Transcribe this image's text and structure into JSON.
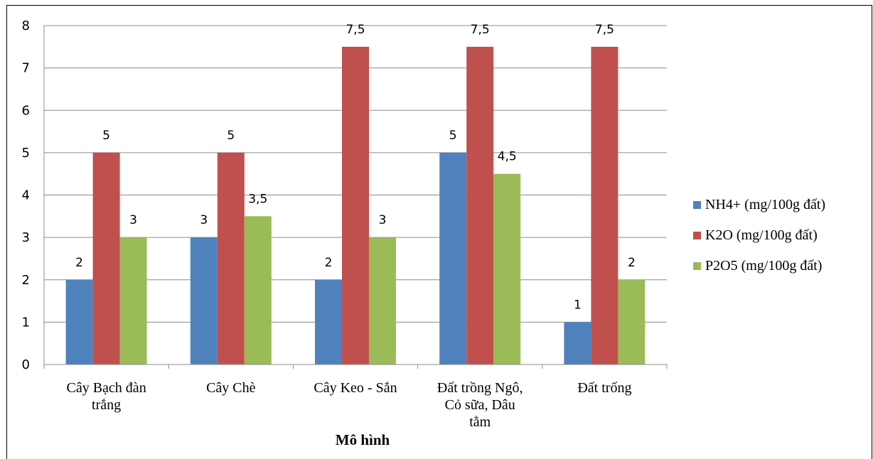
{
  "chart_data": {
    "type": "bar",
    "categories": [
      [
        "Cây Bạch đàn",
        "trắng"
      ],
      [
        "Cây Chè"
      ],
      [
        "Cây Keo - Sắn"
      ],
      [
        "Đất trồng Ngô,",
        "Cỏ sữa, Dâu",
        "tằm"
      ],
      [
        "Đất trống"
      ]
    ],
    "series": [
      {
        "name": "NH4+ (mg/100g đất)",
        "color": "#4f81bd",
        "values": [
          2,
          3,
          2,
          5,
          1
        ],
        "labels": [
          "2",
          "3",
          "2",
          "5",
          "1"
        ]
      },
      {
        "name": "K2O (mg/100g đất)",
        "color": "#c0504d",
        "values": [
          5,
          5,
          7.5,
          7.5,
          7.5
        ],
        "labels": [
          "5",
          "5",
          "7,5",
          "7,5",
          "7,5"
        ]
      },
      {
        "name": "P2O5 (mg/100g đất)",
        "color": "#9bbb59",
        "values": [
          3,
          3.5,
          3,
          4.5,
          2
        ],
        "labels": [
          "3",
          "3,5",
          "3",
          "4,5",
          "2"
        ]
      }
    ],
    "xlabel": "Mô hình",
    "ylabel": "",
    "ylim": [
      0,
      8
    ],
    "yticks": [
      "0",
      "1",
      "2",
      "3",
      "4",
      "5",
      "6",
      "7",
      "8"
    ],
    "grid": true,
    "legend_position": "right"
  }
}
